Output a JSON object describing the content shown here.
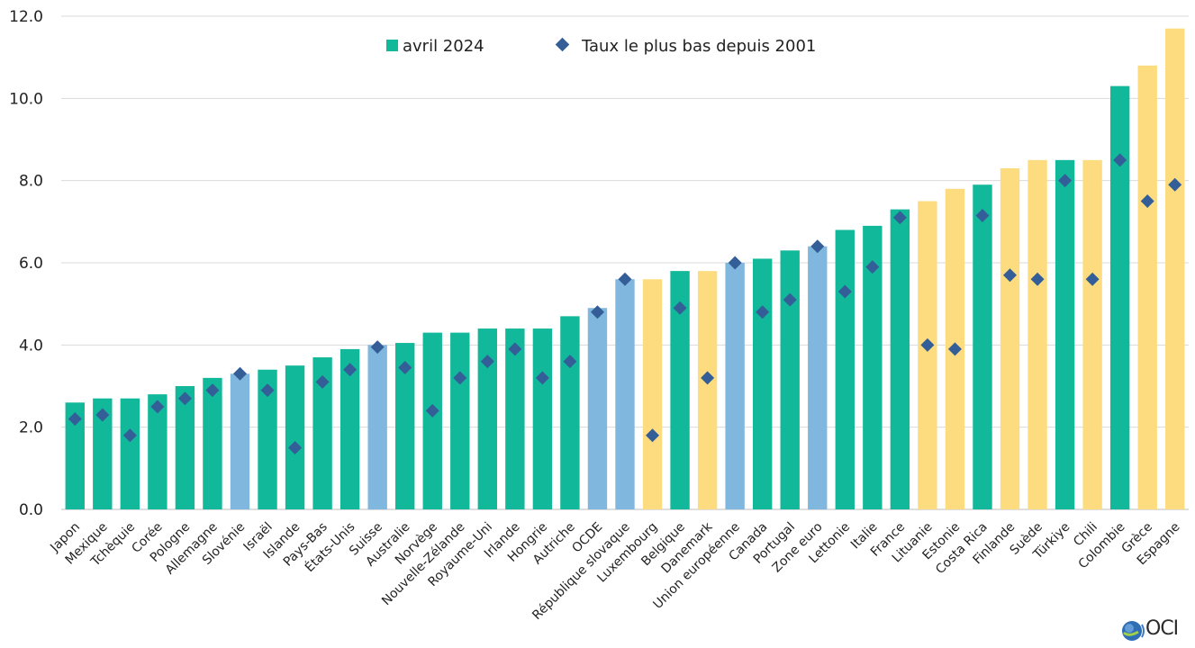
{
  "chart_data": {
    "type": "bar",
    "title": "",
    "xlabel": "",
    "ylabel": "",
    "ylim": [
      0,
      12
    ],
    "yticks": [
      "0.0",
      "2.0",
      "4.0",
      "6.0",
      "8.0",
      "10.0",
      "12.0"
    ],
    "grid": true,
    "legend_position": "top-center",
    "categories": [
      "Japon",
      "Mexique",
      "Tchèquie",
      "Corée",
      "Pologne",
      "Allemagne",
      "Slovénie",
      "Israël",
      "Islande",
      "Pays-Bas",
      "États-Unis",
      "Suisse",
      "Australie",
      "Norvège",
      "Nouvelle-Zélande",
      "Royaume-Uni",
      "Irlande",
      "Hongrie",
      "Autriche",
      "OCDE",
      "République slovaque",
      "Luxembourg",
      "Belgique",
      "Danemark",
      "Union européenne",
      "Canada",
      "Portugal",
      "Zone euro",
      "Lettonie",
      "Italie",
      "France",
      "Lituanie",
      "Estonie",
      "Costa Rica",
      "Finlande",
      "Suède",
      "Türkiye",
      "Chili",
      "Colombie",
      "Grèce",
      "Espagne"
    ],
    "series": [
      {
        "name": "avril 2024",
        "kind": "bar",
        "values": [
          2.6,
          2.7,
          2.7,
          2.8,
          3.0,
          3.2,
          3.3,
          3.4,
          3.5,
          3.7,
          3.9,
          4.0,
          4.05,
          4.3,
          4.3,
          4.4,
          4.4,
          4.4,
          4.7,
          4.9,
          5.6,
          5.6,
          5.8,
          5.8,
          6.0,
          6.1,
          6.3,
          6.4,
          6.8,
          6.9,
          7.3,
          7.5,
          7.8,
          7.9,
          8.3,
          8.5,
          8.5,
          8.5,
          10.3,
          10.8,
          11.7
        ],
        "colors": [
          "#12b89a",
          "#12b89a",
          "#12b89a",
          "#12b89a",
          "#12b89a",
          "#12b89a",
          "#80b7df",
          "#12b89a",
          "#12b89a",
          "#12b89a",
          "#12b89a",
          "#80b7df",
          "#12b89a",
          "#12b89a",
          "#12b89a",
          "#12b89a",
          "#12b89a",
          "#12b89a",
          "#12b89a",
          "#80b7df",
          "#80b7df",
          "#fddc7f",
          "#12b89a",
          "#fddc7f",
          "#80b7df",
          "#12b89a",
          "#12b89a",
          "#80b7df",
          "#12b89a",
          "#12b89a",
          "#12b89a",
          "#fddc7f",
          "#fddc7f",
          "#12b89a",
          "#fddc7f",
          "#fddc7f",
          "#12b89a",
          "#fddc7f",
          "#12b89a",
          "#fddc7f",
          "#fddc7f"
        ]
      },
      {
        "name": "Taux le plus bas depuis 2001",
        "kind": "marker",
        "color": "#345e97",
        "values": [
          2.2,
          2.3,
          1.8,
          2.5,
          2.7,
          2.9,
          3.3,
          2.9,
          1.5,
          3.1,
          3.4,
          3.95,
          3.45,
          2.4,
          3.2,
          3.6,
          3.9,
          3.2,
          3.6,
          4.8,
          5.6,
          1.8,
          4.9,
          3.2,
          6.0,
          4.8,
          5.1,
          6.4,
          5.3,
          5.9,
          7.1,
          4.0,
          3.9,
          7.15,
          5.7,
          5.6,
          8.0,
          5.6,
          8.5,
          7.5,
          7.9
        ]
      }
    ]
  },
  "legend": {
    "bar_label": "avril 2024",
    "marker_label": "Taux le plus bas depuis 2001",
    "bar_color": "#12b89a",
    "marker_color": "#345e97"
  },
  "logo": {
    "text": "OCI",
    "icon": "oecd-globe-icon"
  }
}
